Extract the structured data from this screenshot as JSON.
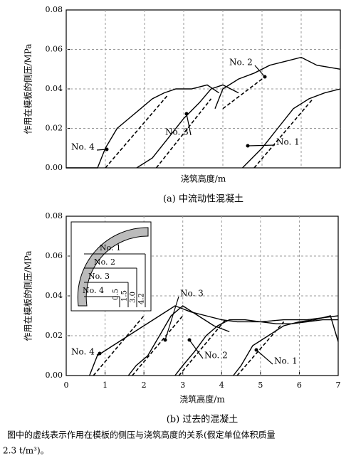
{
  "chart_data": [
    {
      "type": "line",
      "ylabel": "作用在模板的侧压/MPa",
      "xlabel": "浇筑高度/m",
      "caption": "(a) 中流动性混凝土",
      "xlim": [
        0,
        7
      ],
      "ylim": [
        0,
        0.08
      ],
      "yticks": [
        {
          "value": 0,
          "label": "0.00"
        },
        {
          "value": 0.02,
          "label": "0.02"
        },
        {
          "value": 0.04,
          "label": "0.04"
        },
        {
          "value": 0.06,
          "label": "0.06"
        },
        {
          "value": 0.08,
          "label": "0.08"
        }
      ],
      "grid": true,
      "series": [
        {
          "name": "No. 4",
          "color": "#000000",
          "x": [
            0,
            0.8,
            1.0,
            1.3,
            1.6,
            1.9,
            2.2,
            2.5,
            2.8,
            3.2,
            3.6,
            3.9
          ],
          "values": [
            0,
            0,
            0.01,
            0.02,
            0.025,
            0.03,
            0.035,
            0.038,
            0.04,
            0.04,
            0.042,
            0.038
          ]
        },
        {
          "name": "No. 3",
          "color": "#000000",
          "x": [
            1.8,
            2.2,
            2.6,
            3.0,
            3.4,
            3.7,
            4.0,
            4.4
          ],
          "values": [
            0,
            0.005,
            0.015,
            0.025,
            0.033,
            0.04,
            0.042,
            0.038
          ]
        },
        {
          "name": "No. 2",
          "color": "#000000",
          "x": [
            3.8,
            4.0,
            4.4,
            4.8,
            5.2,
            5.6,
            6.0,
            6.4,
            7.0
          ],
          "values": [
            0.03,
            0.04,
            0.045,
            0.048,
            0.052,
            0.054,
            0.056,
            0.052,
            0.05
          ]
        },
        {
          "name": "No. 1",
          "color": "#000000",
          "x": [
            4.5,
            5.0,
            5.4,
            5.8,
            6.2,
            6.6,
            7.0
          ],
          "values": [
            0,
            0.01,
            0.02,
            0.03,
            0.035,
            0.038,
            0.04
          ]
        },
        {
          "dash": true,
          "color": "#000000",
          "x": [
            1.0,
            2.6
          ],
          "values": [
            0,
            0.037
          ]
        },
        {
          "dash": true,
          "color": "#000000",
          "x": [
            2.3,
            3.7
          ],
          "values": [
            0,
            0.035
          ]
        },
        {
          "dash": true,
          "color": "#000000",
          "x": [
            4.0,
            5.0
          ],
          "values": [
            0.03,
            0.045
          ]
        },
        {
          "dash": true,
          "color": "#000000",
          "x": [
            4.8,
            6.3
          ],
          "values": [
            0,
            0.035
          ]
        }
      ]
    },
    {
      "type": "line",
      "ylabel": "作用在模板的侧压/MPa",
      "xlabel": "浇筑高度/m",
      "caption": "(b) 过去的混凝土",
      "xlim": [
        0,
        7
      ],
      "ylim": [
        0,
        0.08
      ],
      "xticks": [
        0,
        1,
        2,
        3,
        4,
        5,
        6,
        7
      ],
      "yticks": [
        {
          "value": 0,
          "label": "0.00"
        },
        {
          "value": 0.02,
          "label": "0.02"
        },
        {
          "value": 0.04,
          "label": "0.04"
        },
        {
          "value": 0.06,
          "label": "0.06"
        },
        {
          "value": 0.08,
          "label": "0.08"
        }
      ],
      "grid": true,
      "series": [
        {
          "name": "No. 4",
          "color": "#000000",
          "x": [
            0.6,
            0.8,
            1.2,
            1.6,
            2.0,
            2.4,
            2.8,
            3.2,
            3.6,
            4.0,
            4.4,
            5.0,
            5.6,
            6.2,
            7.0
          ],
          "values": [
            0,
            0.01,
            0.015,
            0.02,
            0.025,
            0.03,
            0.035,
            0.032,
            0.03,
            0.028,
            0.027,
            0.027,
            0.028,
            0.028,
            0.03
          ]
        },
        {
          "name": "No. 3",
          "color": "#000000",
          "x": [
            1.6,
            1.8,
            2.1,
            2.4,
            2.7,
            3.0,
            3.4,
            3.8,
            4.2
          ],
          "values": [
            0,
            0.005,
            0.01,
            0.02,
            0.03,
            0.035,
            0.03,
            0.025,
            0.022
          ]
        },
        {
          "name": "No. 2",
          "color": "#000000",
          "x": [
            2.8,
            3.0,
            3.3,
            3.6,
            3.9,
            4.2,
            4.6,
            5.0,
            5.4,
            5.8,
            6.2,
            6.6,
            7.0
          ],
          "values": [
            0,
            0.005,
            0.012,
            0.02,
            0.025,
            0.028,
            0.028,
            0.027,
            0.026,
            0.026,
            0.027,
            0.028,
            0.028
          ]
        },
        {
          "name": "No. 1",
          "color": "#000000",
          "x": [
            4.3,
            4.5,
            4.8,
            5.2,
            5.6,
            6.0,
            6.4,
            6.8,
            7.0
          ],
          "values": [
            0,
            0.005,
            0.015,
            0.02,
            0.025,
            0.027,
            0.028,
            0.03,
            0.017
          ]
        },
        {
          "dash": true,
          "color": "#000000",
          "x": [
            0.7,
            2.0
          ],
          "values": [
            0,
            0.03
          ]
        },
        {
          "dash": true,
          "color": "#000000",
          "x": [
            1.7,
            3.0
          ],
          "values": [
            0,
            0.03
          ]
        },
        {
          "dash": true,
          "color": "#000000",
          "x": [
            2.9,
            4.1
          ],
          "values": [
            0,
            0.028
          ]
        },
        {
          "dash": true,
          "color": "#000000",
          "x": [
            4.4,
            5.6
          ],
          "values": [
            0,
            0.027
          ]
        }
      ],
      "inset": {
        "labels": [
          "No. 1",
          "No. 2",
          "No. 3",
          "No. 4"
        ],
        "heights": [
          "4.2",
          "3.0",
          "1.5",
          "0.5"
        ]
      }
    }
  ],
  "note": [
    "图中的虚线表示作用在模板的侧压与浇筑高度的关系(假定单位体积质量",
    "2.3 t/m³)。"
  ]
}
